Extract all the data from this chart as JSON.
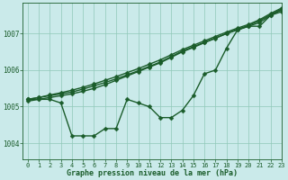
{
  "title": "Graphe pression niveau de la mer (hPa)",
  "background_color": "#caeaea",
  "grid_color": "#90c8b8",
  "line_color": "#1a5c2a",
  "xlim": [
    -0.5,
    23
  ],
  "ylim": [
    1003.55,
    1007.85
  ],
  "yticks": [
    1004,
    1005,
    1006,
    1007
  ],
  "xticks": [
    0,
    1,
    2,
    3,
    4,
    5,
    6,
    7,
    8,
    9,
    10,
    11,
    12,
    13,
    14,
    15,
    16,
    17,
    18,
    19,
    20,
    21,
    22,
    23
  ],
  "series": [
    {
      "y": [
        1005.2,
        1005.2,
        1005.2,
        1005.1,
        1004.2,
        1004.2,
        1004.2,
        1004.4,
        1004.4,
        1005.2,
        1005.1,
        1005.0,
        1004.7,
        1004.7,
        1004.9,
        1005.3,
        1005.9,
        1006.0,
        1006.6,
        1007.1,
        1007.2,
        1007.2,
        1007.5,
        1007.6
      ],
      "marker": true
    },
    {
      "y": [
        1005.15,
        1005.2,
        1005.25,
        1005.3,
        1005.35,
        1005.42,
        1005.5,
        1005.6,
        1005.72,
        1005.84,
        1005.96,
        1006.08,
        1006.2,
        1006.35,
        1006.5,
        1006.62,
        1006.75,
        1006.87,
        1007.0,
        1007.1,
        1007.2,
        1007.3,
        1007.5,
        1007.65
      ],
      "marker": true
    },
    {
      "y": [
        1005.2,
        1005.25,
        1005.3,
        1005.35,
        1005.4,
        1005.48,
        1005.57,
        1005.66,
        1005.76,
        1005.87,
        1005.98,
        1006.1,
        1006.22,
        1006.37,
        1006.52,
        1006.64,
        1006.76,
        1006.88,
        1007.0,
        1007.12,
        1007.22,
        1007.35,
        1007.52,
        1007.67
      ],
      "marker": true
    },
    {
      "y": [
        1005.2,
        1005.25,
        1005.32,
        1005.38,
        1005.45,
        1005.53,
        1005.62,
        1005.72,
        1005.82,
        1005.93,
        1006.04,
        1006.16,
        1006.28,
        1006.42,
        1006.56,
        1006.68,
        1006.8,
        1006.92,
        1007.04,
        1007.15,
        1007.25,
        1007.38,
        1007.55,
        1007.7
      ],
      "marker": true
    }
  ],
  "markersize": 2.5,
  "linewidth": 1.0,
  "xlabel_fontsize": 6.0,
  "tick_fontsize": 5.0,
  "ytick_fontsize": 5.5
}
